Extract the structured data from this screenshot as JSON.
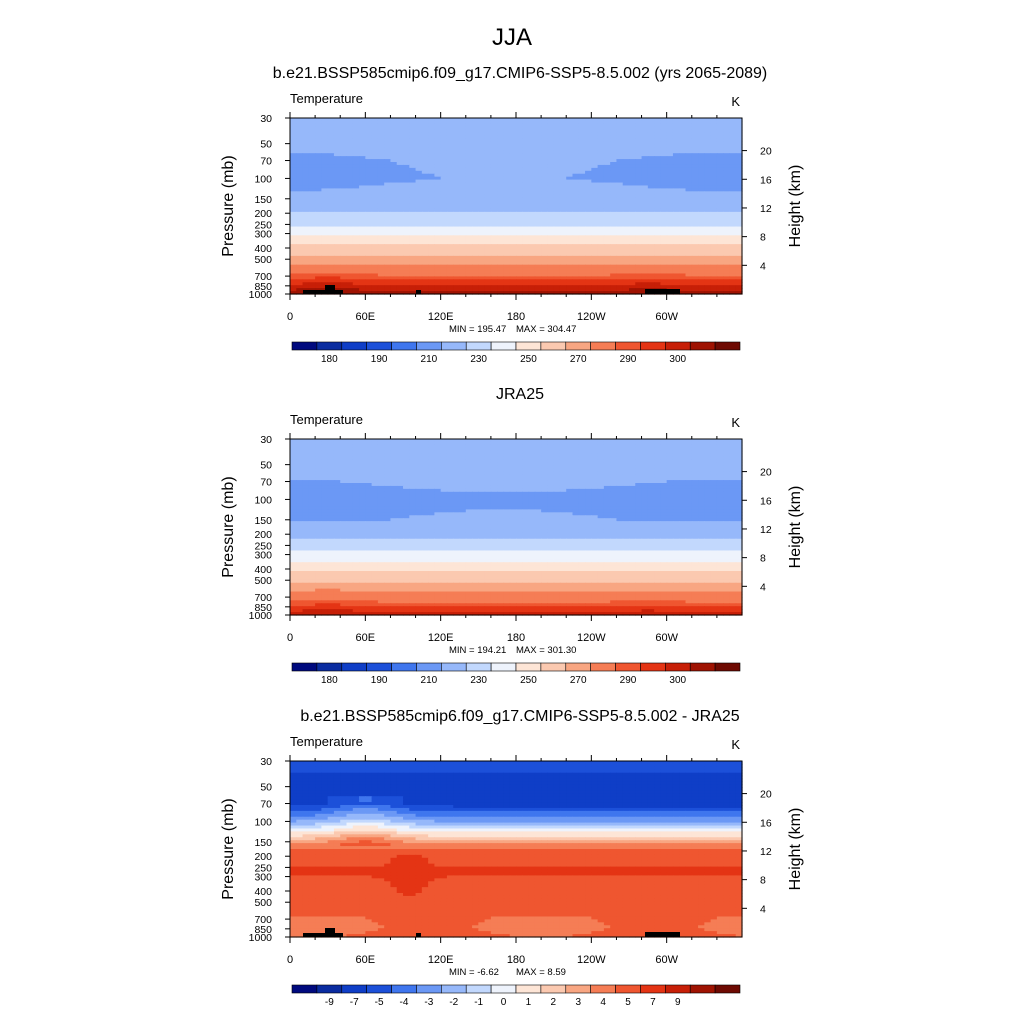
{
  "page_title": "JJA",
  "chart_data": [
    {
      "type": "heatmap",
      "title": "b.e21.BSSP585cmip6.f09_g17.CMIP6-SSP5-8.5.002 (yrs 2065-2089)",
      "variable": "Temperature",
      "units": "K",
      "xlabel": "",
      "ylabel": "Pressure (mb)",
      "ylabel_right": "Height (km)",
      "x_ticks": [
        "0",
        "60E",
        "120E",
        "180",
        "120W",
        "60W"
      ],
      "y_ticks": [
        "30",
        "50",
        "70",
        "100",
        "150",
        "200",
        "250",
        "300",
        "400",
        "500",
        "700",
        "850",
        "1000"
      ],
      "y_ticks_right": [
        "20",
        "16",
        "12",
        "8",
        "4"
      ],
      "min_label": "MIN = 195.47",
      "max_label": "MAX = 304.47",
      "colorbar_labels": [
        "180",
        "190",
        "210",
        "230",
        "250",
        "270",
        "290",
        "300"
      ],
      "colorbar_colors": [
        "#000a7e",
        "#0a2ca0",
        "#0f3ec7",
        "#1c50d9",
        "#3f76ee",
        "#6b98f5",
        "#96b8fa",
        "#c2d8fd",
        "#eef3fc",
        "#fde5d6",
        "#fbc9b0",
        "#f8a682",
        "#f57d55",
        "#ef5630",
        "#e43414",
        "#c71f07",
        "#9f1302",
        "#6e0a02"
      ],
      "field": {
        "levels_mb": [
          30,
          50,
          70,
          100,
          150,
          200,
          250,
          300,
          400,
          500,
          700,
          850,
          1000
        ],
        "base_K": [
          218,
          213,
          210,
          209,
          213,
          221,
          229,
          238,
          253,
          264,
          281,
          291,
          298
        ]
      }
    },
    {
      "type": "heatmap",
      "title": "JRA25",
      "variable": "Temperature",
      "units": "K",
      "xlabel": "",
      "ylabel": "Pressure (mb)",
      "ylabel_right": "Height (km)",
      "x_ticks": [
        "0",
        "60E",
        "120E",
        "180",
        "120W",
        "60W"
      ],
      "y_ticks": [
        "30",
        "50",
        "70",
        "100",
        "150",
        "200",
        "250",
        "300",
        "400",
        "500",
        "700",
        "850",
        "1000"
      ],
      "y_ticks_right": [
        "20",
        "16",
        "12",
        "8",
        "4"
      ],
      "min_label": "MIN = 194.21",
      "max_label": "MAX = 301.30",
      "colorbar_labels": [
        "180",
        "190",
        "210",
        "230",
        "250",
        "270",
        "290",
        "300"
      ],
      "colorbar_colors": [
        "#000a7e",
        "#0a2ca0",
        "#0f3ec7",
        "#1c50d9",
        "#3f76ee",
        "#6b98f5",
        "#96b8fa",
        "#c2d8fd",
        "#eef3fc",
        "#fde5d6",
        "#fbc9b0",
        "#f8a682",
        "#f57d55",
        "#ef5630",
        "#e43414",
        "#c71f07",
        "#9f1302",
        "#6e0a02"
      ],
      "field": {
        "levels_mb": [
          30,
          50,
          70,
          100,
          150,
          200,
          250,
          300,
          400,
          500,
          700,
          850,
          1000
        ],
        "base_K": [
          218,
          214,
          211,
          207,
          210,
          217,
          226,
          234,
          247,
          258,
          275,
          285,
          293
        ]
      }
    },
    {
      "type": "heatmap",
      "title": "b.e21.BSSP585cmip6.f09_g17.CMIP6-SSP5-8.5.002 - JRA25",
      "variable": "Temperature",
      "units": "K",
      "xlabel": "",
      "ylabel": "Pressure (mb)",
      "ylabel_right": "Height (km)",
      "x_ticks": [
        "0",
        "60E",
        "120E",
        "180",
        "120W",
        "60W"
      ],
      "y_ticks": [
        "30",
        "50",
        "70",
        "100",
        "150",
        "200",
        "250",
        "300",
        "400",
        "500",
        "700",
        "850",
        "1000"
      ],
      "y_ticks_right": [
        "20",
        "16",
        "12",
        "8",
        "4"
      ],
      "min_label": "MIN =  -6.62",
      "max_label": "MAX =   8.59",
      "colorbar_labels": [
        "-9",
        "-7",
        "-5",
        "-4",
        "-3",
        "-2",
        "-1",
        "0",
        "1",
        "2",
        "3",
        "4",
        "5",
        "7",
        "9"
      ],
      "colorbar_colors": [
        "#000a7e",
        "#0a2ca0",
        "#0f3ec7",
        "#1c50d9",
        "#3f76ee",
        "#6b98f5",
        "#96b8fa",
        "#c2d8fd",
        "#eef3fc",
        "#fde5d6",
        "#fbc9b0",
        "#f8a682",
        "#f57d55",
        "#ef5630",
        "#e43414",
        "#c71f07",
        "#9f1302",
        "#6e0a02"
      ],
      "field": {
        "levels_mb": [
          30,
          50,
          70,
          100,
          150,
          200,
          250,
          300,
          400,
          500,
          700,
          850,
          1000
        ],
        "base_K": [
          -4.6,
          -5.5,
          -5.6,
          -2.0,
          3.5,
          6.5,
          7.0,
          7.0,
          6.5,
          6.0,
          5.0,
          4.8,
          5.5
        ]
      }
    }
  ]
}
